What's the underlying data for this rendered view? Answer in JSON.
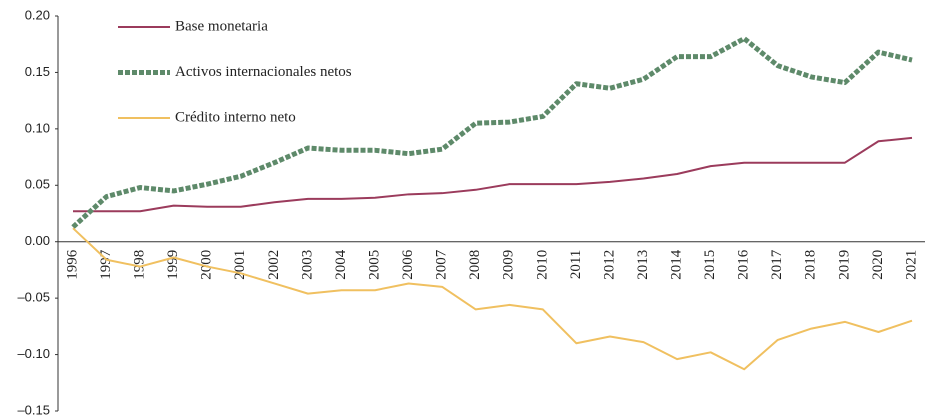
{
  "chart_data": {
    "type": "line",
    "categories": [
      "1996",
      "1997",
      "1998",
      "1999",
      "2000",
      "2001",
      "2002",
      "2003",
      "2004",
      "2005",
      "2006",
      "2007",
      "2008",
      "2009",
      "2010",
      "2011",
      "2012",
      "2013",
      "2014",
      "2015",
      "2016",
      "2017",
      "2018",
      "2019",
      "2020",
      "2021"
    ],
    "series": [
      {
        "name": "Base monetaria",
        "color": "#9b3b5c",
        "line_style": "solid",
        "values": [
          0.027,
          0.027,
          0.027,
          0.032,
          0.031,
          0.031,
          0.035,
          0.038,
          0.038,
          0.039,
          0.042,
          0.043,
          0.046,
          0.051,
          0.051,
          0.051,
          0.053,
          0.056,
          0.06,
          0.067,
          0.07,
          0.07,
          0.07,
          0.07,
          0.089,
          0.092
        ]
      },
      {
        "name": "Activos internacionales netos",
        "color": "#5e8a6a",
        "line_style": "dashed",
        "values": [
          0.013,
          0.04,
          0.048,
          0.045,
          0.051,
          0.058,
          0.07,
          0.083,
          0.081,
          0.081,
          0.078,
          0.082,
          0.105,
          0.106,
          0.111,
          0.14,
          0.136,
          0.144,
          0.164,
          0.164,
          0.18,
          0.156,
          0.146,
          0.141,
          0.168,
          0.161
        ]
      },
      {
        "name": "Crédito interno neto",
        "color": "#f0c060",
        "line_style": "solid",
        "values": [
          0.012,
          -0.016,
          -0.022,
          -0.014,
          -0.022,
          -0.028,
          -0.037,
          -0.046,
          -0.043,
          -0.043,
          -0.037,
          -0.04,
          -0.06,
          -0.056,
          -0.06,
          -0.09,
          -0.084,
          -0.089,
          -0.104,
          -0.098,
          -0.113,
          -0.087,
          -0.077,
          -0.071,
          -0.08,
          -0.07
        ]
      }
    ],
    "ylim": [
      -0.15,
      0.2
    ],
    "yticks": [
      {
        "value": 0.2,
        "label": "0.20"
      },
      {
        "value": 0.15,
        "label": "0.15"
      },
      {
        "value": 0.1,
        "label": "0.10"
      },
      {
        "value": 0.05,
        "label": "0.05"
      },
      {
        "value": 0,
        "label": "0.00"
      },
      {
        "value": -0.05,
        "label": "–0.05"
      },
      {
        "value": -0.1,
        "label": "–0.10"
      },
      {
        "value": -0.15,
        "label": "–0.15"
      }
    ],
    "legend": "upper left",
    "grid": false
  }
}
